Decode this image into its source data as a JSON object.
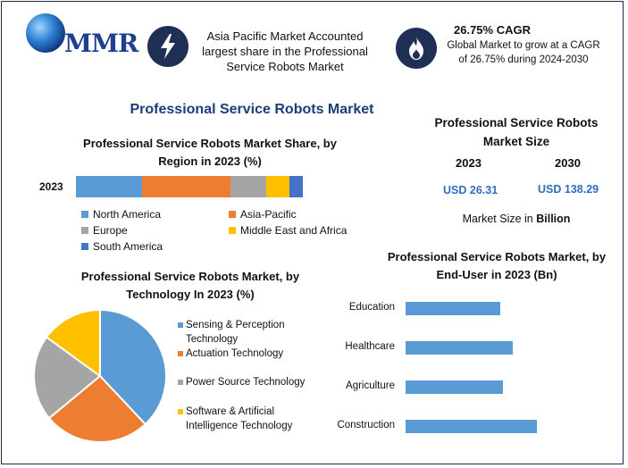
{
  "brand": {
    "logo_text": "MMR"
  },
  "header": {
    "info1_text": "Asia Pacific Market Accounted largest share in the Professional Service Robots Market",
    "cagr_title": "26.75% CAGR",
    "info2_text": "Global Market to grow at a CAGR of 26.75% during 2024-2030",
    "badge_color": "#1f2f55"
  },
  "main_title": "Professional Service Robots Market",
  "market_size": {
    "title": "Professional Service Robots Market Size",
    "year1": "2023",
    "year2": "2030",
    "value1": "USD 26.31",
    "value2": "USD 138.29",
    "unit_prefix": "Market Size in ",
    "unit_bold": "Billion"
  },
  "chart_data": [
    {
      "type": "bar",
      "orientation": "horizontal-stacked",
      "title": "Professional Service Robots Market Share, by Region in 2023 (%)",
      "categories": [
        "2023"
      ],
      "series": [
        {
          "name": "North America",
          "values": [
            29
          ],
          "color": "#5b9bd5"
        },
        {
          "name": "Asia-Pacific",
          "values": [
            39
          ],
          "color": "#ed7d31"
        },
        {
          "name": "Europe",
          "values": [
            16
          ],
          "color": "#a5a5a5"
        },
        {
          "name": "Middle East and Africa",
          "values": [
            10
          ],
          "color": "#ffc000"
        },
        {
          "name": "South America",
          "values": [
            6
          ],
          "color": "#4472c4"
        }
      ]
    },
    {
      "type": "pie",
      "title": "Professional Service Robots Market, by Technology In 2023 (%)",
      "labels": [
        "Sensing & Perception Technology",
        "Actuation Technology",
        "Power Source Technology",
        "Software & Artificial Intelligence Technology"
      ],
      "values": [
        38,
        26,
        21,
        15
      ],
      "colors": [
        "#5b9bd5",
        "#ed7d31",
        "#a5a5a5",
        "#ffc000"
      ]
    },
    {
      "type": "bar",
      "orientation": "horizontal",
      "title": "Professional Service Robots Market, by End-User in 2023 (Bn)",
      "categories": [
        "Education",
        "Healthcare",
        "Agriculture",
        "Construction"
      ],
      "values": [
        3.9,
        4.4,
        4.0,
        5.4
      ],
      "xlim": [
        0,
        9
      ],
      "color": "#5b9bd5"
    }
  ]
}
